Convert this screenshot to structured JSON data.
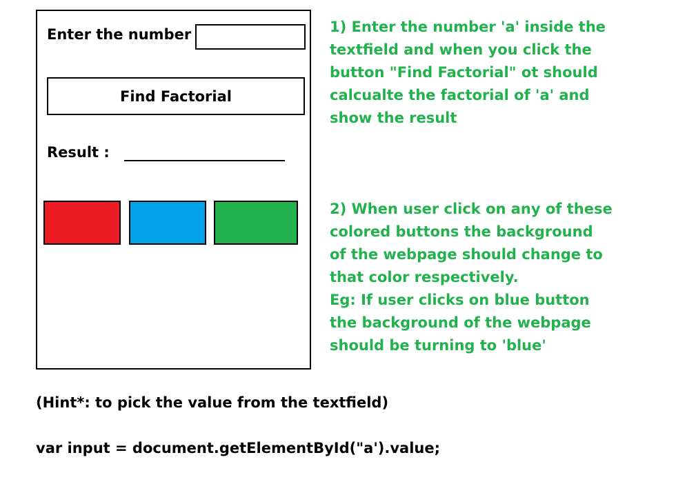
{
  "form": {
    "enter_label": "Enter the number",
    "number_input_value": "",
    "find_button_label": "Find Factorial",
    "result_label": "Result :"
  },
  "color_buttons": [
    {
      "color": "#ed1c24"
    },
    {
      "color": "#00a2e8"
    },
    {
      "color": "#22b14c"
    }
  ],
  "instructions": {
    "color": "#22b14c",
    "note_1": [
      "1) Enter the number 'a' inside the",
      "textfield and when you click the",
      "button \"Find Factorial\" ot should",
      "calcualte the factorial of 'a' and",
      "show the result"
    ],
    "note_2": [
      "2) When user click on any of these",
      "colored buttons the background",
      "of the webpage should change to",
      "that color respectively.",
      "Eg: If user clicks on blue button",
      "the background of the webpage",
      "should be turning to 'blue'"
    ]
  },
  "hint": "(Hint*: to pick the value from the textfield)",
  "code": "var input = document.getElementById(\"a').value;"
}
